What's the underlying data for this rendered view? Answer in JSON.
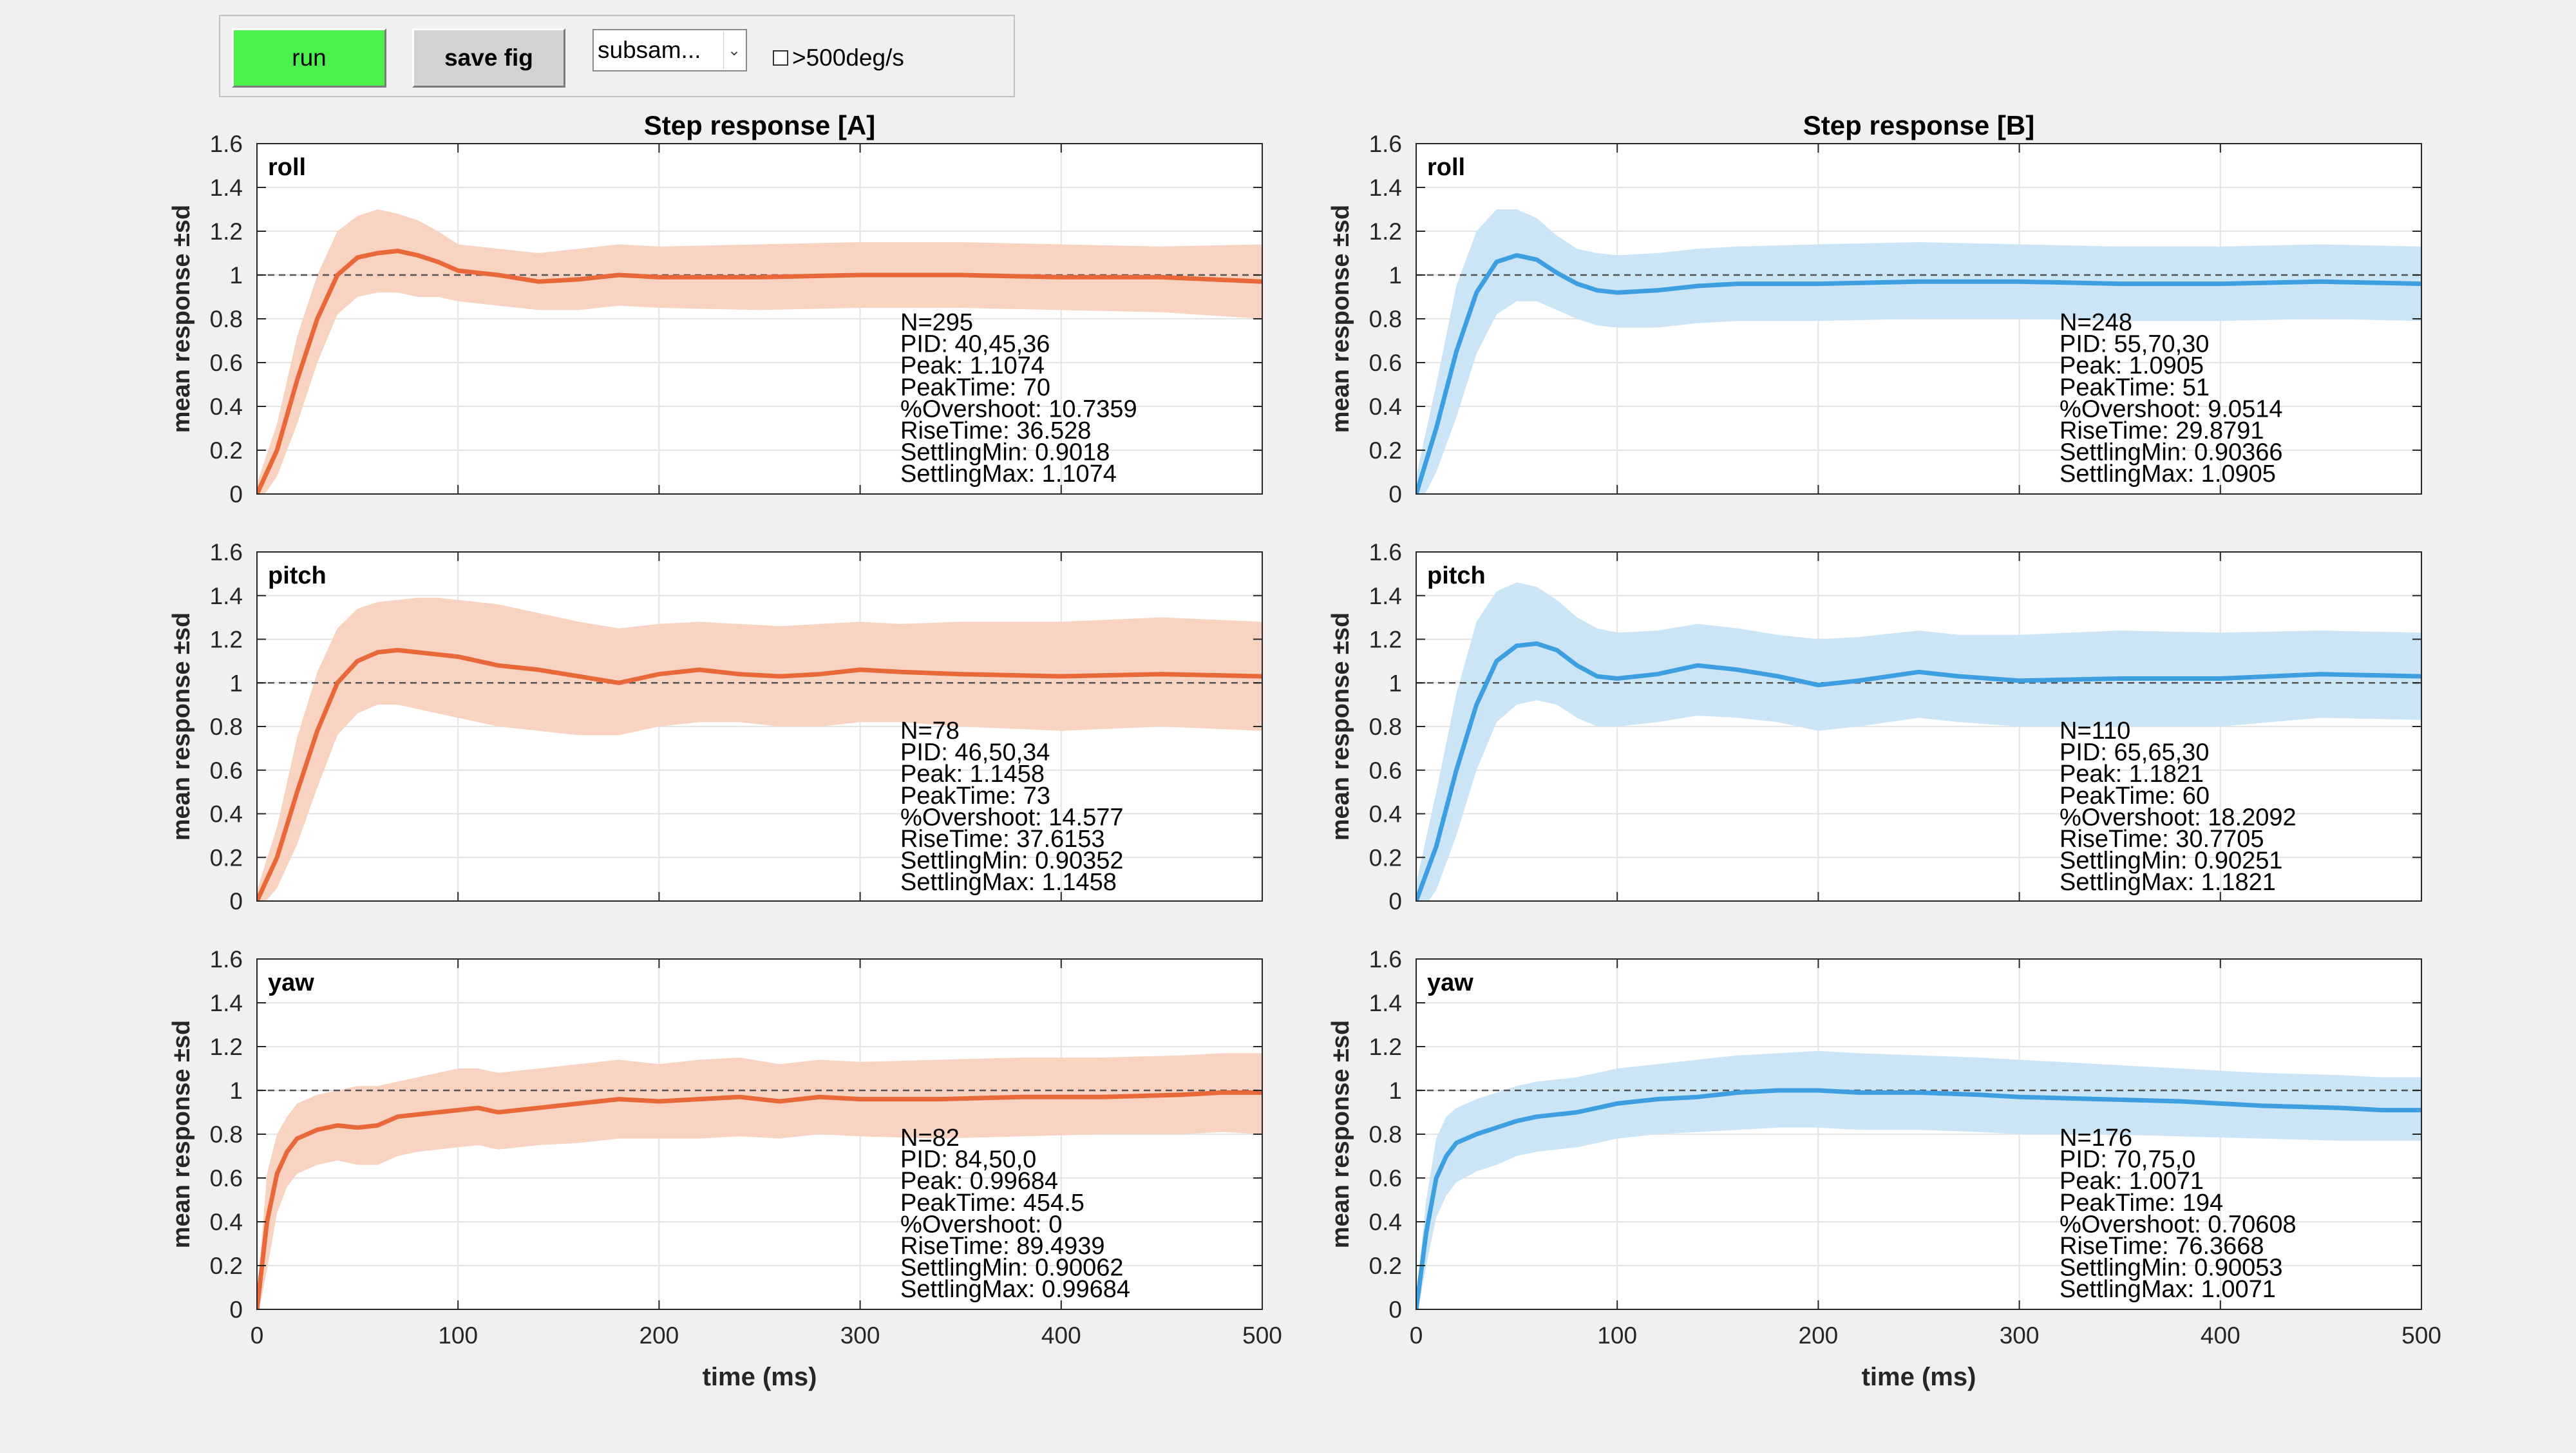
{
  "toolbar": {
    "run_label": "run",
    "save_label": "save fig",
    "select_value": "subsam...",
    "checkbox_label": ">500deg/s",
    "checkbox_checked": false
  },
  "colors": {
    "A_line": "#e8683a",
    "A_band": "#f9d3c2",
    "B_line": "#3e9fe0",
    "B_band": "#cbe5f7"
  },
  "chart_data": [
    {
      "type": "line",
      "panel": "A",
      "axis": "roll",
      "title": "Step response [A]",
      "ylabel": "mean response ±sd",
      "xlabel": "",
      "xlim": [
        0,
        500
      ],
      "ylim": [
        0,
        1.6
      ],
      "reference_y": 1,
      "grid": true,
      "xticks": [
        0,
        100,
        200,
        300,
        400,
        500
      ],
      "yticks": [
        0,
        0.2,
        0.4,
        0.6,
        0.8,
        1,
        1.2,
        1.4,
        1.6
      ],
      "xticklabels": [],
      "yticklabels": [
        "0",
        "0.2",
        "0.4",
        "0.6",
        "0.8",
        "1",
        "1.2",
        "1.4",
        "1.6"
      ],
      "x": [
        0,
        10,
        20,
        30,
        40,
        50,
        60,
        70,
        80,
        90,
        100,
        120,
        140,
        160,
        180,
        200,
        250,
        300,
        350,
        400,
        450,
        500
      ],
      "mean": [
        0,
        0.2,
        0.52,
        0.8,
        1.0,
        1.08,
        1.1,
        1.11,
        1.09,
        1.06,
        1.02,
        1.0,
        0.97,
        0.98,
        1.0,
        0.99,
        0.99,
        1.0,
        1.0,
        0.99,
        0.99,
        0.97
      ],
      "upper": [
        0.05,
        0.32,
        0.72,
        1.0,
        1.2,
        1.27,
        1.3,
        1.28,
        1.25,
        1.2,
        1.14,
        1.12,
        1.1,
        1.12,
        1.14,
        1.13,
        1.14,
        1.15,
        1.15,
        1.14,
        1.13,
        1.14
      ],
      "lower": [
        -0.05,
        0.08,
        0.32,
        0.6,
        0.82,
        0.9,
        0.92,
        0.92,
        0.9,
        0.9,
        0.88,
        0.86,
        0.84,
        0.84,
        0.86,
        0.85,
        0.84,
        0.85,
        0.85,
        0.84,
        0.83,
        0.8
      ],
      "stats": [
        "N=295",
        "PID: 40,45,36",
        "Peak: 1.1074",
        "PeakTime: 70",
        "%Overshoot: 10.7359",
        "RiseTime: 36.528",
        "SettlingMin: 0.9018",
        "SettlingMax: 1.1074"
      ]
    },
    {
      "type": "line",
      "panel": "A",
      "axis": "pitch",
      "title": "",
      "ylabel": "mean response ±sd",
      "xlabel": "",
      "xlim": [
        0,
        500
      ],
      "ylim": [
        0,
        1.6
      ],
      "reference_y": 1,
      "grid": true,
      "xticks": [
        0,
        100,
        200,
        300,
        400,
        500
      ],
      "yticks": [
        0,
        0.2,
        0.4,
        0.6,
        0.8,
        1,
        1.2,
        1.4,
        1.6
      ],
      "xticklabels": [],
      "yticklabels": [
        "0",
        "0.2",
        "0.4",
        "0.6",
        "0.8",
        "1",
        "1.2",
        "1.4",
        "1.6"
      ],
      "x": [
        0,
        10,
        20,
        30,
        40,
        50,
        60,
        70,
        80,
        90,
        100,
        120,
        140,
        160,
        180,
        200,
        220,
        240,
        260,
        280,
        300,
        320,
        350,
        400,
        450,
        500
      ],
      "mean": [
        0,
        0.2,
        0.5,
        0.78,
        1.0,
        1.1,
        1.14,
        1.15,
        1.14,
        1.13,
        1.12,
        1.08,
        1.06,
        1.03,
        1.0,
        1.04,
        1.06,
        1.04,
        1.03,
        1.04,
        1.06,
        1.05,
        1.04,
        1.03,
        1.04,
        1.03
      ],
      "upper": [
        0.05,
        0.34,
        0.75,
        1.05,
        1.25,
        1.34,
        1.37,
        1.38,
        1.39,
        1.39,
        1.38,
        1.36,
        1.32,
        1.28,
        1.25,
        1.27,
        1.28,
        1.27,
        1.26,
        1.27,
        1.28,
        1.27,
        1.28,
        1.28,
        1.3,
        1.28
      ],
      "lower": [
        -0.05,
        0.06,
        0.26,
        0.52,
        0.76,
        0.86,
        0.9,
        0.9,
        0.88,
        0.86,
        0.84,
        0.8,
        0.78,
        0.76,
        0.76,
        0.8,
        0.82,
        0.82,
        0.8,
        0.8,
        0.82,
        0.82,
        0.8,
        0.78,
        0.8,
        0.78
      ],
      "stats": [
        "N=78",
        "PID: 46,50,34",
        "Peak: 1.1458",
        "PeakTime: 73",
        "%Overshoot: 14.577",
        "RiseTime: 37.6153",
        "SettlingMin: 0.90352",
        "SettlingMax: 1.1458"
      ]
    },
    {
      "type": "line",
      "panel": "A",
      "axis": "yaw",
      "title": "",
      "ylabel": "mean response ±sd",
      "xlabel": "time (ms)",
      "xlim": [
        0,
        500
      ],
      "ylim": [
        0,
        1.6
      ],
      "reference_y": 1,
      "grid": true,
      "xticks": [
        0,
        100,
        200,
        300,
        400,
        500
      ],
      "yticks": [
        0,
        0.2,
        0.4,
        0.6,
        0.8,
        1,
        1.2,
        1.4,
        1.6
      ],
      "xticklabels": [
        "0",
        "100",
        "200",
        "300",
        "400",
        "500"
      ],
      "yticklabels": [
        "0",
        "0.2",
        "0.4",
        "0.6",
        "0.8",
        "1",
        "1.2",
        "1.4",
        "1.6"
      ],
      "x": [
        0,
        5,
        10,
        15,
        20,
        30,
        40,
        50,
        60,
        70,
        80,
        90,
        100,
        110,
        120,
        140,
        160,
        180,
        200,
        220,
        240,
        260,
        280,
        300,
        340,
        380,
        420,
        460,
        480,
        500
      ],
      "mean": [
        0,
        0.4,
        0.62,
        0.72,
        0.78,
        0.82,
        0.84,
        0.83,
        0.84,
        0.88,
        0.89,
        0.9,
        0.91,
        0.92,
        0.9,
        0.92,
        0.94,
        0.96,
        0.95,
        0.96,
        0.97,
        0.95,
        0.97,
        0.96,
        0.96,
        0.97,
        0.97,
        0.98,
        0.99,
        0.99
      ],
      "upper": [
        0.05,
        0.62,
        0.8,
        0.88,
        0.94,
        0.98,
        1.0,
        1.02,
        1.02,
        1.04,
        1.06,
        1.08,
        1.1,
        1.1,
        1.08,
        1.1,
        1.12,
        1.14,
        1.12,
        1.14,
        1.15,
        1.12,
        1.14,
        1.13,
        1.14,
        1.15,
        1.15,
        1.16,
        1.17,
        1.17
      ],
      "lower": [
        -0.05,
        0.18,
        0.44,
        0.56,
        0.62,
        0.66,
        0.68,
        0.66,
        0.66,
        0.7,
        0.72,
        0.73,
        0.74,
        0.75,
        0.73,
        0.75,
        0.76,
        0.78,
        0.78,
        0.78,
        0.79,
        0.78,
        0.8,
        0.79,
        0.78,
        0.79,
        0.8,
        0.8,
        0.81,
        0.8
      ],
      "stats": [
        "N=82",
        "PID: 84,50,0",
        "Peak: 0.99684",
        "PeakTime: 454.5",
        "%Overshoot: 0",
        "RiseTime: 89.4939",
        "SettlingMin: 0.90062",
        "SettlingMax: 0.99684"
      ]
    },
    {
      "type": "line",
      "panel": "B",
      "axis": "roll",
      "title": "Step response [B]",
      "ylabel": "mean response ±sd",
      "xlabel": "",
      "xlim": [
        0,
        500
      ],
      "ylim": [
        0,
        1.6
      ],
      "reference_y": 1,
      "grid": true,
      "xticks": [
        0,
        100,
        200,
        300,
        400,
        500
      ],
      "yticks": [
        0,
        0.2,
        0.4,
        0.6,
        0.8,
        1,
        1.2,
        1.4,
        1.6
      ],
      "xticklabels": [],
      "yticklabels": [
        "0",
        "0.2",
        "0.4",
        "0.6",
        "0.8",
        "1",
        "1.2",
        "1.4",
        "1.6"
      ],
      "x": [
        0,
        10,
        20,
        30,
        40,
        50,
        60,
        70,
        80,
        90,
        100,
        120,
        140,
        160,
        200,
        250,
        300,
        350,
        400,
        450,
        500
      ],
      "mean": [
        0,
        0.3,
        0.65,
        0.92,
        1.06,
        1.09,
        1.07,
        1.01,
        0.96,
        0.93,
        0.92,
        0.93,
        0.95,
        0.96,
        0.96,
        0.97,
        0.97,
        0.96,
        0.96,
        0.97,
        0.96
      ],
      "upper": [
        0.08,
        0.5,
        0.95,
        1.2,
        1.3,
        1.3,
        1.26,
        1.18,
        1.12,
        1.1,
        1.09,
        1.1,
        1.12,
        1.13,
        1.14,
        1.15,
        1.14,
        1.13,
        1.13,
        1.14,
        1.13
      ],
      "lower": [
        -0.08,
        0.1,
        0.35,
        0.64,
        0.82,
        0.88,
        0.88,
        0.84,
        0.8,
        0.77,
        0.76,
        0.76,
        0.78,
        0.79,
        0.79,
        0.8,
        0.8,
        0.79,
        0.79,
        0.8,
        0.79
      ],
      "stats": [
        "N=248",
        "PID: 55,70,30",
        "Peak: 1.0905",
        "PeakTime: 51",
        "%Overshoot: 9.0514",
        "RiseTime: 29.8791",
        "SettlingMin: 0.90366",
        "SettlingMax: 1.0905"
      ]
    },
    {
      "type": "line",
      "panel": "B",
      "axis": "pitch",
      "title": "",
      "ylabel": "mean response ±sd",
      "xlabel": "",
      "xlim": [
        0,
        500
      ],
      "ylim": [
        0,
        1.6
      ],
      "reference_y": 1,
      "grid": true,
      "xticks": [
        0,
        100,
        200,
        300,
        400,
        500
      ],
      "yticks": [
        0,
        0.2,
        0.4,
        0.6,
        0.8,
        1,
        1.2,
        1.4,
        1.6
      ],
      "xticklabels": [],
      "yticklabels": [
        "0",
        "0.2",
        "0.4",
        "0.6",
        "0.8",
        "1",
        "1.2",
        "1.4",
        "1.6"
      ],
      "x": [
        0,
        10,
        20,
        30,
        40,
        50,
        60,
        70,
        80,
        90,
        100,
        120,
        140,
        160,
        180,
        200,
        220,
        250,
        270,
        300,
        350,
        400,
        450,
        500
      ],
      "mean": [
        0,
        0.25,
        0.6,
        0.9,
        1.1,
        1.17,
        1.18,
        1.15,
        1.08,
        1.03,
        1.02,
        1.04,
        1.08,
        1.06,
        1.03,
        0.99,
        1.01,
        1.05,
        1.03,
        1.01,
        1.02,
        1.02,
        1.04,
        1.03
      ],
      "upper": [
        0.08,
        0.5,
        0.95,
        1.28,
        1.42,
        1.46,
        1.44,
        1.38,
        1.3,
        1.25,
        1.23,
        1.24,
        1.27,
        1.25,
        1.22,
        1.2,
        1.21,
        1.24,
        1.22,
        1.22,
        1.24,
        1.23,
        1.24,
        1.23
      ],
      "lower": [
        -0.08,
        0.05,
        0.3,
        0.6,
        0.82,
        0.9,
        0.92,
        0.9,
        0.84,
        0.8,
        0.8,
        0.82,
        0.85,
        0.84,
        0.82,
        0.78,
        0.8,
        0.84,
        0.82,
        0.8,
        0.8,
        0.8,
        0.84,
        0.83
      ],
      "stats": [
        "N=110",
        "PID: 65,65,30",
        "Peak: 1.1821",
        "PeakTime: 60",
        "%Overshoot: 18.2092",
        "RiseTime: 30.7705",
        "SettlingMin: 0.90251",
        "SettlingMax: 1.1821"
      ]
    },
    {
      "type": "line",
      "panel": "B",
      "axis": "yaw",
      "title": "",
      "ylabel": "mean response ±sd",
      "xlabel": "time (ms)",
      "xlim": [
        0,
        500
      ],
      "ylim": [
        0,
        1.6
      ],
      "reference_y": 1,
      "grid": true,
      "xticks": [
        0,
        100,
        200,
        300,
        400,
        500
      ],
      "yticks": [
        0,
        0.2,
        0.4,
        0.6,
        0.8,
        1,
        1.2,
        1.4,
        1.6
      ],
      "xticklabels": [
        "0",
        "100",
        "200",
        "300",
        "400",
        "500"
      ],
      "yticklabels": [
        "0",
        "0.2",
        "0.4",
        "0.6",
        "0.8",
        "1",
        "1.2",
        "1.4",
        "1.6"
      ],
      "x": [
        0,
        5,
        10,
        15,
        20,
        30,
        40,
        50,
        60,
        80,
        100,
        120,
        140,
        160,
        180,
        200,
        220,
        250,
        280,
        300,
        340,
        380,
        420,
        460,
        480,
        500
      ],
      "mean": [
        0,
        0.35,
        0.6,
        0.7,
        0.76,
        0.8,
        0.83,
        0.86,
        0.88,
        0.9,
        0.94,
        0.96,
        0.97,
        0.99,
        1.0,
        1.0,
        0.99,
        0.99,
        0.98,
        0.97,
        0.96,
        0.95,
        0.93,
        0.92,
        0.91,
        0.91
      ],
      "upper": [
        0.05,
        0.5,
        0.78,
        0.88,
        0.92,
        0.96,
        0.99,
        1.02,
        1.04,
        1.06,
        1.1,
        1.12,
        1.14,
        1.16,
        1.17,
        1.18,
        1.17,
        1.16,
        1.15,
        1.14,
        1.12,
        1.1,
        1.08,
        1.07,
        1.06,
        1.06
      ],
      "lower": [
        -0.05,
        0.2,
        0.42,
        0.52,
        0.58,
        0.63,
        0.66,
        0.7,
        0.72,
        0.74,
        0.78,
        0.8,
        0.81,
        0.82,
        0.83,
        0.83,
        0.82,
        0.82,
        0.81,
        0.8,
        0.8,
        0.79,
        0.78,
        0.77,
        0.77,
        0.77
      ],
      "stats": [
        "N=176",
        "PID: 70,75,0",
        "Peak: 1.0071",
        "PeakTime: 194",
        "%Overshoot: 0.70608",
        "RiseTime: 76.3668",
        "SettlingMin: 0.90053",
        "SettlingMax: 1.0071"
      ]
    }
  ]
}
